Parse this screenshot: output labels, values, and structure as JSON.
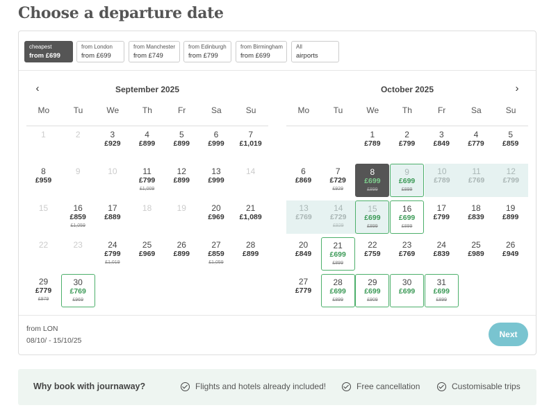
{
  "title": "Choose a departure date",
  "filters": [
    {
      "line1": "cheapest",
      "line2": "from £699",
      "active": true
    },
    {
      "line1": "from London",
      "line2": "from £699",
      "active": false
    },
    {
      "line1": "from Manchester",
      "line2": "from £749",
      "active": false
    },
    {
      "line1": "from Edinburgh",
      "line2": "from £799",
      "active": false
    },
    {
      "line1": "from Birmingham",
      "line2": "from £699",
      "active": false
    },
    {
      "line1": "All",
      "line2": "airports",
      "active": false
    }
  ],
  "weekdays": [
    "Mo",
    "Tu",
    "We",
    "Th",
    "Fr",
    "Sa",
    "Su"
  ],
  "months": [
    {
      "name": "September 2025",
      "start_weekday": 0,
      "days": [
        {
          "d": 1,
          "state": "off"
        },
        {
          "d": 2,
          "state": "off"
        },
        {
          "d": 3,
          "price": "£929"
        },
        {
          "d": 4,
          "price": "£899"
        },
        {
          "d": 5,
          "price": "£899"
        },
        {
          "d": 6,
          "price": "£999"
        },
        {
          "d": 7,
          "price": "£1,019"
        },
        {
          "d": 8,
          "price": "£959"
        },
        {
          "d": 9,
          "state": "off"
        },
        {
          "d": 10,
          "state": "off"
        },
        {
          "d": 11,
          "price": "£799",
          "old": "£1,009"
        },
        {
          "d": 12,
          "price": "£899"
        },
        {
          "d": 13,
          "price": "£999"
        },
        {
          "d": 14,
          "state": "off"
        },
        {
          "d": 15,
          "state": "off"
        },
        {
          "d": 16,
          "price": "£859",
          "old": "£1,059"
        },
        {
          "d": 17,
          "price": "£889"
        },
        {
          "d": 18,
          "state": "off"
        },
        {
          "d": 19,
          "state": "off"
        },
        {
          "d": 20,
          "price": "£969"
        },
        {
          "d": 21,
          "price": "£1,089"
        },
        {
          "d": 22,
          "state": "off"
        },
        {
          "d": 23,
          "state": "off"
        },
        {
          "d": 24,
          "price": "£799",
          "old": "£1,019"
        },
        {
          "d": 25,
          "price": "£969"
        },
        {
          "d": 26,
          "price": "£899"
        },
        {
          "d": 27,
          "price": "£859",
          "old": "£1,059"
        },
        {
          "d": 28,
          "price": "£899"
        },
        {
          "d": 29,
          "price": "£779",
          "old": "£979"
        },
        {
          "d": 30,
          "price": "£769",
          "old": "£969",
          "state": "deal"
        }
      ]
    },
    {
      "name": "October 2025",
      "start_weekday": 2,
      "days": [
        {
          "d": 1,
          "price": "£789"
        },
        {
          "d": 2,
          "price": "£799"
        },
        {
          "d": 3,
          "price": "£849"
        },
        {
          "d": 4,
          "price": "£779"
        },
        {
          "d": 5,
          "price": "£859"
        },
        {
          "d": 6,
          "price": "£869"
        },
        {
          "d": 7,
          "price": "£729",
          "old": "£929"
        },
        {
          "d": 8,
          "price": "£699",
          "old": "£899",
          "state": "sel"
        },
        {
          "d": 9,
          "price": "£699",
          "old": "£899",
          "state": "rdeal"
        },
        {
          "d": 10,
          "price": "£789",
          "state": "range"
        },
        {
          "d": 11,
          "price": "£769",
          "state": "range"
        },
        {
          "d": 12,
          "price": "£799",
          "state": "range"
        },
        {
          "d": 13,
          "price": "£769",
          "state": "range"
        },
        {
          "d": 14,
          "price": "£729",
          "old": "£929",
          "state": "range"
        },
        {
          "d": 15,
          "price": "£699",
          "old": "£899",
          "state": "rdeal"
        },
        {
          "d": 16,
          "price": "£699",
          "old": "£899",
          "state": "deal"
        },
        {
          "d": 17,
          "price": "£799"
        },
        {
          "d": 18,
          "price": "£839"
        },
        {
          "d": 19,
          "price": "£899"
        },
        {
          "d": 20,
          "price": "£849"
        },
        {
          "d": 21,
          "price": "£699",
          "old": "£899",
          "state": "deal"
        },
        {
          "d": 22,
          "price": "£759"
        },
        {
          "d": 23,
          "price": "£769"
        },
        {
          "d": 24,
          "price": "£839"
        },
        {
          "d": 25,
          "price": "£989"
        },
        {
          "d": 26,
          "price": "£949"
        },
        {
          "d": 27,
          "price": "£779"
        },
        {
          "d": 28,
          "price": "£699",
          "old": "£899",
          "state": "deal"
        },
        {
          "d": 29,
          "price": "£699",
          "old": "£909",
          "state": "deal"
        },
        {
          "d": 30,
          "price": "£699",
          "state": "deal"
        },
        {
          "d": 31,
          "price": "£699",
          "old": "£899",
          "state": "deal"
        }
      ]
    }
  ],
  "summary": {
    "line1": "from LON",
    "line2": "08/10/ - 15/10/25"
  },
  "next_label": "Next",
  "why": {
    "title": "Why book with journaway?",
    "features": [
      "Flights and hotels already included!",
      "Free cancellation",
      "Customisable trips"
    ]
  },
  "icons": {
    "prev": "chevron-left-icon",
    "next": "chevron-right-icon",
    "feature": "check-circle-icon"
  },
  "colors": {
    "selected": "#555555",
    "deal_border": "#4caf6a",
    "range_bg": "#e6f2f1",
    "next_button": "#79c4d0"
  }
}
